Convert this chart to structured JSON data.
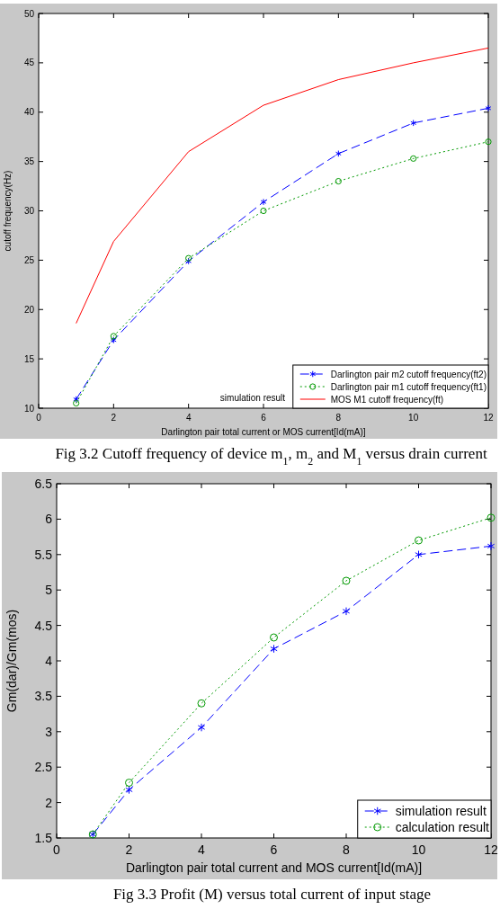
{
  "chart_data": [
    {
      "type": "line",
      "x": [
        1,
        2,
        4,
        6,
        8,
        10,
        12
      ],
      "xlabel": "Darlington pair total current or MOS current[Id(mA)]",
      "ylabel": "cutoff frequency(Hz)",
      "xlim": [
        0,
        12
      ],
      "xticks": [
        0,
        2,
        4,
        6,
        8,
        10,
        12
      ],
      "ylim": [
        10,
        50
      ],
      "yticks": [
        10,
        15,
        20,
        25,
        30,
        35,
        40,
        45,
        50
      ],
      "grid": false,
      "legend": "bottom right",
      "series": [
        {
          "name": "Darlington pair m2 cutoff frequency(ft2)",
          "color": "#0000ff",
          "line_style": "dashed",
          "marker": "cross",
          "values": [
            10.9,
            16.9,
            24.9,
            30.9,
            35.8,
            38.9,
            40.4
          ]
        },
        {
          "name": "Darlington pair m1 cutoff frequency(ft1)",
          "color": "#009900",
          "line_style": "dotted",
          "marker": "circle",
          "values": [
            10.5,
            17.3,
            25.2,
            30.0,
            33.0,
            35.3,
            37.0
          ]
        },
        {
          "name": "MOS M1 cutoff frequency(ft)",
          "color": "#ff0000",
          "line_style": "solid",
          "marker": "none",
          "values": [
            18.6,
            26.9,
            36.0,
            40.7,
            43.3,
            45.0,
            46.5
          ]
        }
      ],
      "annotations": [
        "simulation result",
        "Fig 3.2 Cutoff frequency of device m$_{1}$, m$_{2}$ and M$_{1}$ versus drain current"
      ]
    },
    {
      "type": "line",
      "x": [
        1,
        2,
        4,
        6,
        8,
        10,
        12
      ],
      "xlabel": "Darlington pair total current and MOS current[Id(mA)]",
      "ylabel": "Gm(dar)/Gm(mos)",
      "xlim": [
        0,
        12
      ],
      "xticks": [
        0,
        2,
        4,
        6,
        8,
        10,
        12
      ],
      "ylim": [
        1.5,
        6.5
      ],
      "yticks": [
        1.5,
        2,
        2.5,
        3,
        3.5,
        4,
        4.5,
        5,
        5.5,
        6,
        6.5
      ],
      "grid": false,
      "legend": "bottom right",
      "series": [
        {
          "name": "simulation result",
          "color": "#0000ff",
          "line_style": "dashed",
          "marker": "cross",
          "values": [
            1.55,
            2.18,
            3.06,
            4.17,
            4.7,
            5.5,
            5.62
          ]
        },
        {
          "name": "calculation result",
          "color": "#009900",
          "line_style": "dotted",
          "marker": "circle",
          "values": [
            1.55,
            2.28,
            3.4,
            4.33,
            5.13,
            5.7,
            6.02
          ]
        }
      ],
      "annotations": [
        "Fig 3.3 Profit (M) versus total current of input stage"
      ]
    }
  ]
}
